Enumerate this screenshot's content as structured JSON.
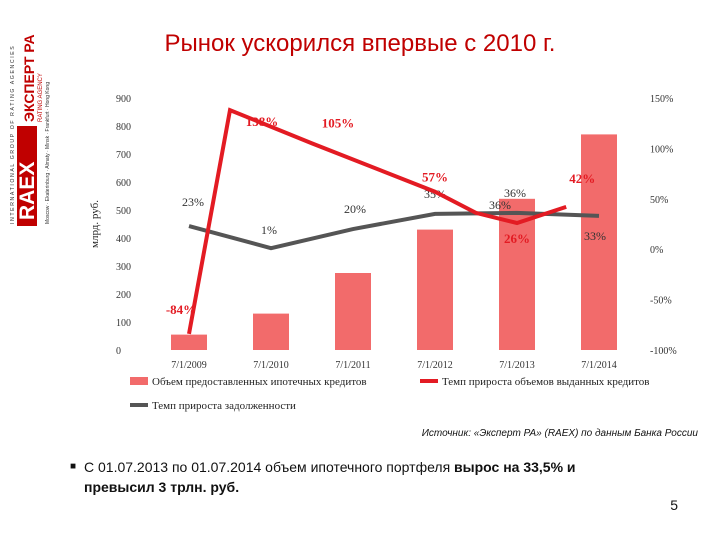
{
  "logo": {
    "text_vertical": "INTERNATIONAL GROUP OF RATING AGENCIES",
    "brand_main": "ЭКСПЕРТ РА",
    "brand_sub": "RATING AGENCY",
    "cities": "Moscow · Ekaterinburg · Almaty · Minsk · Frankfurt · Hong Kong",
    "accent_color": "#c00000"
  },
  "title": "Рынок ускорился впервые с 2010 г.",
  "chart_data": {
    "type": "bar",
    "categories": [
      "7/1/2009",
      "7/1/2010",
      "7/1/2011",
      "7/1/2012",
      "7/1/2013",
      "7/1/2014"
    ],
    "ylabel": "млрд. руб.",
    "ylim": [
      0,
      900
    ],
    "yticks": [
      0,
      100,
      200,
      300,
      400,
      500,
      600,
      700,
      800,
      900
    ],
    "y2lim": [
      -100,
      150
    ],
    "y2ticks": [
      "-100%",
      "-50%",
      "0%",
      "50%",
      "100%",
      "150%"
    ],
    "y2values": [
      -100,
      -50,
      0,
      50,
      100,
      150
    ],
    "series": [
      {
        "name": "Объем предоставленных ипотечных кредитов",
        "kind": "bar",
        "axis": "left",
        "color": "#f26b6b",
        "values": [
          55,
          130,
          275,
          430,
          540,
          770
        ]
      },
      {
        "name": "Темп прироста объемов выданных кредитов",
        "kind": "line",
        "axis": "right",
        "color": "#e31b23",
        "x": [
          0,
          0.5,
          1.5,
          3.0,
          3.5,
          4.0,
          4.6
        ],
        "values": [
          -84,
          138,
          105,
          57,
          36,
          26,
          42
        ],
        "labels": [
          "-84%",
          "138%",
          "105%",
          "57%",
          "36%",
          "26%",
          "42%"
        ],
        "label_style": [
          "red",
          "red",
          "red",
          "red",
          "plain",
          "red",
          "red"
        ]
      },
      {
        "name": "Темп прироста задолженности",
        "kind": "line",
        "axis": "right",
        "color": "#555555",
        "x": [
          0,
          1,
          2,
          3,
          4,
          5
        ],
        "values": [
          23,
          1,
          20,
          35,
          36,
          33
        ],
        "labels": [
          "23%",
          "1%",
          "20%",
          "35%",
          "36%",
          "33%"
        ]
      }
    ],
    "legend_position": "bottom"
  },
  "source": "Источник: «Эксперт РА» (RAEX) по данным Банка России",
  "bullet": {
    "prefix": "С 01.07.2013 по 01.07.2014 объем ипотечного портфеля ",
    "bold1": "вырос на 33,5% и",
    "bold2": "превысил 3 трлн. руб."
  },
  "page_number": "5"
}
